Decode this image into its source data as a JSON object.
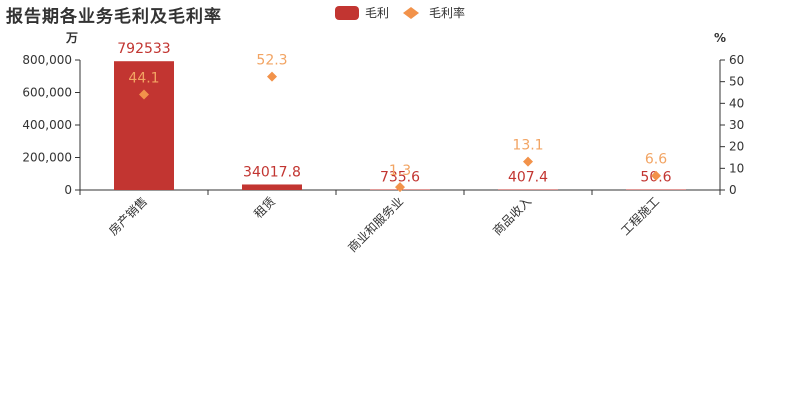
{
  "title": "报告期各业务毛利及毛利率",
  "colors": {
    "bar": "#c23531",
    "diamond": "#f2924a",
    "axis": "#333333",
    "label_bar": "#c23531",
    "label_diamond": "#f2a463"
  },
  "chart_data": {
    "type": "bar",
    "title": "报告期各业务毛利及毛利率",
    "categories": [
      "房产销售",
      "租赁",
      "商业和服务业",
      "商品收入",
      "工程施工"
    ],
    "series": [
      {
        "name": "毛利",
        "type": "bar",
        "axis": "left",
        "values": [
          792533,
          34017.8,
          735.6,
          407.4,
          50.6
        ],
        "labels": [
          "792533",
          "34017.8",
          "735.6",
          "407.4",
          "50.6"
        ]
      },
      {
        "name": "毛利率",
        "type": "scatter",
        "axis": "right",
        "values": [
          44.1,
          52.3,
          1.3,
          13.1,
          6.6
        ],
        "labels": [
          "44.1",
          "52.3",
          "1.3",
          "13.1",
          "6.6"
        ]
      }
    ],
    "yleft": {
      "unit": "万",
      "min": 0,
      "max": 800000,
      "ticks": [
        0,
        200000,
        400000,
        600000,
        800000
      ],
      "tick_labels": [
        "0",
        "200,000",
        "400,000",
        "600,000",
        "800,000"
      ]
    },
    "yright": {
      "unit": "%",
      "min": 0,
      "max": 60,
      "ticks": [
        0,
        10,
        20,
        30,
        40,
        50,
        60
      ],
      "tick_labels": [
        "0",
        "10",
        "20",
        "30",
        "40",
        "50",
        "60"
      ]
    },
    "legend_position": "top-center",
    "grid": false
  }
}
